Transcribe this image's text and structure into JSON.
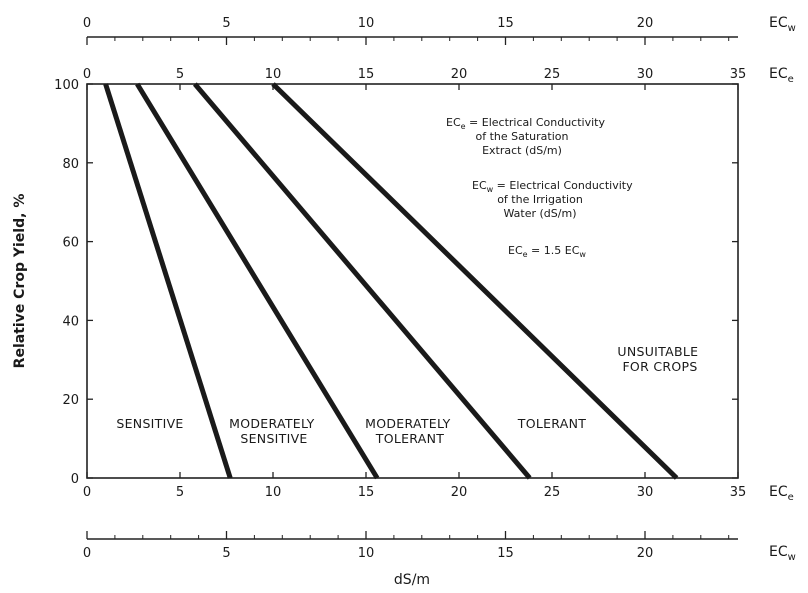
{
  "chart_data": {
    "type": "line",
    "ylabel": "Relative Crop Yield, %",
    "xlabel": "dS/m",
    "ece_axis_label": "EC",
    "ece_axis_sub": "e",
    "ecw_axis_label": "EC",
    "ecw_axis_sub": "w",
    "ece_ticks": [
      0,
      5,
      10,
      15,
      20,
      25,
      30,
      35
    ],
    "ecw_ticks": [
      0,
      5,
      10,
      15,
      20
    ],
    "y_ticks": [
      0,
      20,
      40,
      60,
      80,
      100
    ],
    "xlim_ece": [
      0,
      35
    ],
    "ylim": [
      0,
      100
    ],
    "ecw_to_ece_factor": 1.5,
    "series": [
      {
        "x": [
          1.0,
          7.7
        ],
        "y": [
          100,
          0
        ]
      },
      {
        "x": [
          2.7,
          15.6
        ],
        "y": [
          100,
          0
        ]
      },
      {
        "x": [
          5.8,
          23.8
        ],
        "y": [
          100,
          0
        ]
      },
      {
        "x": [
          10.0,
          31.7
        ],
        "y": [
          100,
          0
        ]
      }
    ],
    "zones": [
      {
        "lines": [
          "SENSITIVE"
        ]
      },
      {
        "lines": [
          "MODERATELY",
          "SENSITIVE"
        ]
      },
      {
        "lines": [
          "MODERATELY",
          "TOLERANT"
        ]
      },
      {
        "lines": [
          "TOLERANT"
        ]
      },
      {
        "lines": [
          "UNSUITABLE",
          "FOR CROPS"
        ]
      }
    ],
    "legend": {
      "ece_def": [
        "EC",
        "e",
        " = Electrical Conductivity",
        "of the Saturation",
        "Extract (dS/m)"
      ],
      "ecw_def": [
        "EC",
        "w",
        " = Electrical Conductivity",
        "of the Irrigation",
        "Water (dS/m)"
      ],
      "relation": [
        "EC",
        "e",
        " = 1.5 EC",
        "w"
      ]
    }
  }
}
